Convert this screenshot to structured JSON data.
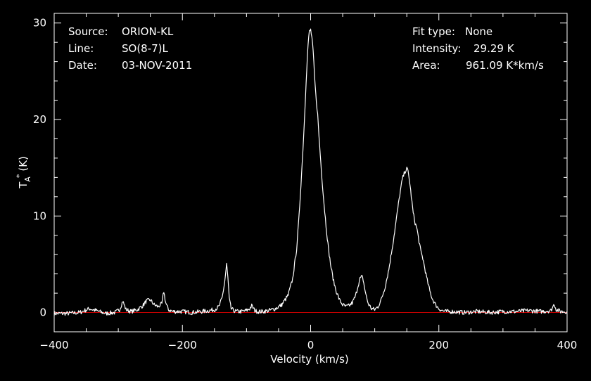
{
  "chart_data": {
    "type": "line",
    "xlabel": "Velocity (km/s)",
    "ylabel": {
      "base": "T",
      "sub": "A",
      "sup": "*",
      "unit": "(K)"
    },
    "xlim": [
      -400,
      400
    ],
    "ylim": [
      -2,
      31
    ],
    "x_ticks": [
      -400,
      -200,
      0,
      200,
      400
    ],
    "y_ticks": [
      0,
      10,
      20,
      30
    ],
    "grid": false,
    "colors": {
      "background": "#000000",
      "foreground": "#ffffff",
      "baseline": "#cc0000"
    },
    "baseline_y": 0,
    "info_left": [
      {
        "key": "Source:",
        "value": "ORION-KL"
      },
      {
        "key": "Line:",
        "value": "SO(8-7)L"
      },
      {
        "key": "Date:",
        "value": "03-NOV-2011"
      }
    ],
    "info_right": [
      {
        "key": "Fit type:",
        "value": "None"
      },
      {
        "key": "Intensity:",
        "value": "29.29 K"
      },
      {
        "key": "Area:",
        "value": "961.09 K*km/s"
      }
    ],
    "series": [
      {
        "x": [
          -400,
          -380,
          -360,
          -345,
          -335,
          -320,
          -305,
          -298,
          -293,
          -288,
          -280,
          -270,
          -262,
          -256,
          -250,
          -244,
          -238,
          -232,
          -229,
          -226,
          -222,
          -215,
          -200,
          -185,
          -170,
          -158,
          -150,
          -143,
          -138,
          -134,
          -131,
          -129,
          -127,
          -124,
          -120,
          -115,
          -108,
          -100,
          -95,
          -92,
          -90,
          -87,
          -83,
          -75,
          -65,
          -55,
          -45,
          -35,
          -28,
          -22,
          -18,
          -14,
          -10,
          -7,
          -4,
          -2,
          0,
          2,
          4,
          6,
          8,
          11,
          14,
          17,
          20,
          24,
          28,
          32,
          36,
          40,
          45,
          50,
          55,
          60,
          65,
          70,
          74,
          77,
          80,
          82,
          84,
          87,
          90,
          95,
          100,
          105,
          110,
          116,
          122,
          128,
          134,
          139,
          143,
          147,
          150,
          152,
          154,
          157,
          160,
          163,
          166,
          169,
          172,
          175,
          178,
          182,
          186,
          190,
          195,
          200,
          205,
          210,
          220,
          240,
          260,
          280,
          300,
          320,
          340,
          360,
          375,
          380,
          383,
          390,
          400
        ],
        "y": [
          -0.1,
          -0.1,
          0.0,
          0.4,
          0.2,
          -0.1,
          0.0,
          0.3,
          1.2,
          0.3,
          0.1,
          0.3,
          0.7,
          1.2,
          1.3,
          0.8,
          0.6,
          0.9,
          2.2,
          1.0,
          0.3,
          0.1,
          0.1,
          0.0,
          0.1,
          0.2,
          0.3,
          0.6,
          1.5,
          3.2,
          5.0,
          3.6,
          1.4,
          0.4,
          0.2,
          0.1,
          0.1,
          0.2,
          0.4,
          0.7,
          0.5,
          0.2,
          0.1,
          0.1,
          0.2,
          0.4,
          0.8,
          1.8,
          3.5,
          6.5,
          10.0,
          14.5,
          19.5,
          24.0,
          27.8,
          29.1,
          29.29,
          28.5,
          27.0,
          24.5,
          22.6,
          20.5,
          17.3,
          14.5,
          12.0,
          9.0,
          6.5,
          4.6,
          3.2,
          2.2,
          1.3,
          0.8,
          0.6,
          0.7,
          1.0,
          1.7,
          2.8,
          3.5,
          3.7,
          3.4,
          2.6,
          1.6,
          0.9,
          0.4,
          0.3,
          0.6,
          1.3,
          2.6,
          4.5,
          7.0,
          9.8,
          12.2,
          13.8,
          14.6,
          14.9,
          14.6,
          13.8,
          12.0,
          10.3,
          9.3,
          8.6,
          7.4,
          6.3,
          5.6,
          4.6,
          3.3,
          2.2,
          1.4,
          0.8,
          0.4,
          0.2,
          0.1,
          0.1,
          0.0,
          0.1,
          0.0,
          0.1,
          0.1,
          0.2,
          0.1,
          0.2,
          0.9,
          0.3,
          0.1,
          0.1
        ]
      }
    ]
  }
}
